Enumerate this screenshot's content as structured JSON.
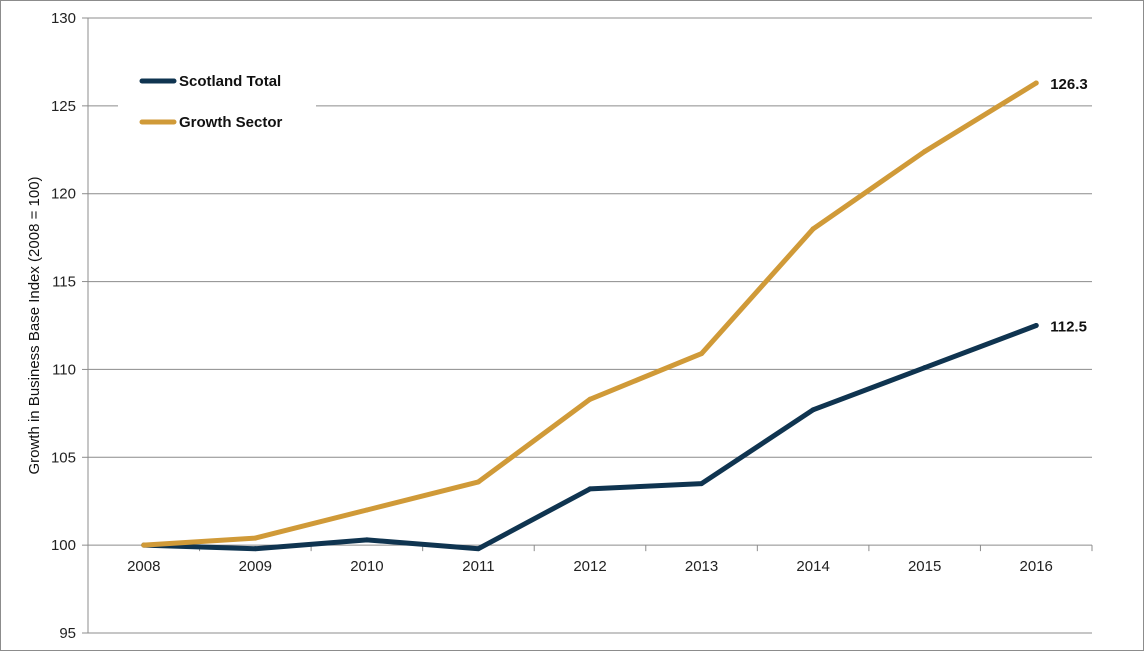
{
  "chart_data": {
    "type": "line",
    "title": "",
    "ylabel": "Growth in Business Base Index (2008 = 100)",
    "xlabel": "",
    "categories": [
      "2008",
      "2009",
      "2010",
      "2011",
      "2012",
      "2013",
      "2014",
      "2015",
      "2016"
    ],
    "ylim": [
      95,
      130
    ],
    "yticks": [
      95,
      100,
      105,
      110,
      115,
      120,
      125,
      130
    ],
    "x_axis_crosses_at": 100,
    "grid": true,
    "legend": "top-left",
    "series": [
      {
        "name": "Scotland Total",
        "color": "#0f3450",
        "values": [
          100,
          99.8,
          100.3,
          99.8,
          103.2,
          103.5,
          107.7,
          110.1,
          112.5
        ],
        "end_label": "112.5"
      },
      {
        "name": "Growth Sector",
        "color": "#d09a38",
        "values": [
          100,
          100.4,
          102.0,
          103.6,
          108.3,
          110.9,
          118.0,
          122.4,
          126.3
        ],
        "end_label": "126.3"
      }
    ]
  }
}
